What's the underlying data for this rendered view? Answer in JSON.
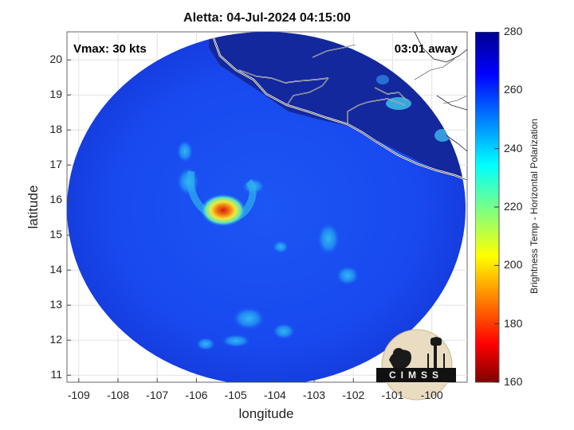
{
  "title": "Aletta: 04-Jul-2024 04:15:00",
  "vmax_label": "Vmax: 30 kts",
  "time_away_label": "03:01 away",
  "xlabel": "longitude",
  "ylabel": "latitude",
  "colorbar_label": "Brightness Temp - Horizontal Polarization",
  "logo_text": "CIMSS",
  "axes": {
    "lon_range": [
      -109.3,
      -99.1
    ],
    "lat_range": [
      10.8,
      20.8
    ],
    "lon_ticks": [
      "-109",
      "-108",
      "-107",
      "-106",
      "-105",
      "-104",
      "-103",
      "-102",
      "-101",
      "-100"
    ],
    "lat_ticks": [
      "11",
      "12",
      "13",
      "14",
      "15",
      "16",
      "17",
      "18",
      "19",
      "20"
    ],
    "grid": true
  },
  "colorbar": {
    "min": 160,
    "max": 280,
    "ticks": [
      "160",
      "180",
      "200",
      "220",
      "240",
      "260",
      "280"
    ],
    "colormap": "jet"
  },
  "colors": {
    "background_field": "#1a4ef2",
    "cold_core": "#e23a10",
    "coastline": "#ffffff"
  },
  "storm_center": {
    "lon": -105.2,
    "lat": 15.6
  },
  "swath_center": {
    "lon": -104.3,
    "lat": 15.7
  }
}
